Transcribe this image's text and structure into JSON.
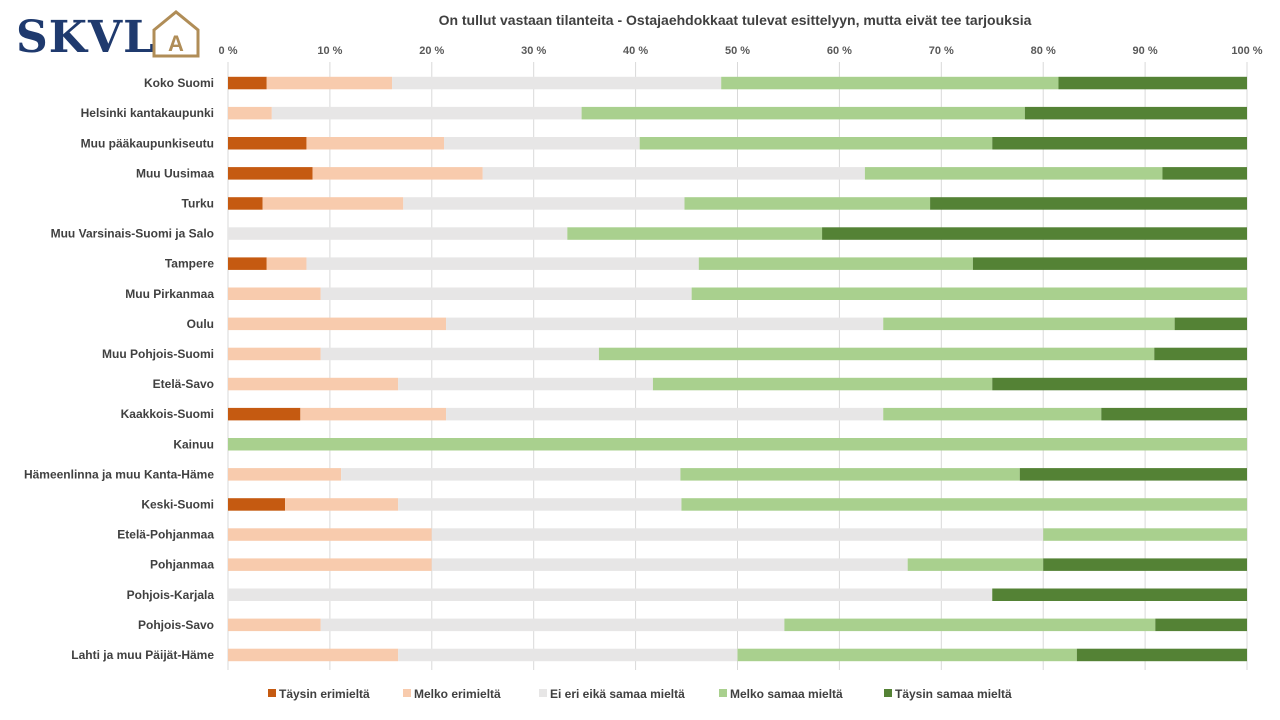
{
  "logo": {
    "text": "SKVL",
    "badge_letter": "A",
    "colors": {
      "text": "#1f3a6e",
      "badge": "#b08d57"
    }
  },
  "chart_data": {
    "type": "bar",
    "orientation": "horizontal-stacked-100",
    "title": "On tullut vastaan tilanteita - Ostajaehdokkaat tulevat esittelyyn, mutta eivät tee tarjouksia",
    "x_ticks": [
      "0 %",
      "10 %",
      "20 %",
      "30 %",
      "40 %",
      "50 %",
      "60 %",
      "70 %",
      "80 %",
      "90 %",
      "100 %"
    ],
    "xlim": [
      0,
      100
    ],
    "grid": true,
    "legend_position": "bottom",
    "categories": [
      "Koko Suomi",
      "Helsinki kantakaupunki",
      "Muu pääkaupunkiseutu",
      "Muu Uusimaa",
      "Turku",
      "Muu Varsinais-Suomi ja Salo",
      "Tampere",
      "Muu Pirkanmaa",
      "Oulu",
      "Muu Pohjois-Suomi",
      "Etelä-Savo",
      "Kaakkois-Suomi",
      "Kainuu",
      "Hämeenlinna ja muu Kanta-Häme",
      "Keski-Suomi",
      "Etelä-Pohjanmaa",
      "Pohjanmaa",
      "Pohjois-Karjala",
      "Pohjois-Savo",
      "Lahti ja muu Päijät-Häme"
    ],
    "series": [
      {
        "name": "Täysin erimieltä",
        "color": "#c55a11",
        "values": [
          3.8,
          0,
          7.7,
          8.3,
          3.4,
          0,
          3.8,
          0,
          0,
          0,
          0,
          7.1,
          0,
          0,
          5.6,
          0,
          0,
          0,
          0,
          0
        ]
      },
      {
        "name": "Melko erimieltä",
        "color": "#f8cbad",
        "values": [
          12.3,
          4.3,
          13.5,
          16.7,
          13.8,
          0,
          3.9,
          9.1,
          21.4,
          9.1,
          16.7,
          14.3,
          0,
          11.1,
          11.1,
          20,
          20,
          0,
          9.1,
          16.7
        ]
      },
      {
        "name": "Ei eri eikä samaa mieltä",
        "color": "#e7e6e6",
        "values": [
          32.3,
          30.4,
          19.2,
          37.5,
          27.6,
          33.3,
          38.5,
          36.4,
          42.9,
          27.3,
          25,
          42.9,
          0,
          33.3,
          27.8,
          60,
          46.7,
          75,
          45.5,
          33.3
        ]
      },
      {
        "name": "Melko samaa mieltä",
        "color": "#a9d08e",
        "values": [
          33.1,
          43.5,
          34.6,
          29.2,
          24.1,
          25,
          26.9,
          54.5,
          28.6,
          54.5,
          33.3,
          21.4,
          100,
          33.3,
          55.5,
          20,
          13.3,
          0,
          36.4,
          33.3
        ]
      },
      {
        "name": "Täysin samaa mieltä",
        "color": "#548235",
        "values": [
          18.5,
          21.8,
          25,
          8.3,
          31.1,
          41.7,
          26.9,
          0,
          7.1,
          9.1,
          25,
          14.3,
          0,
          22.3,
          0,
          0,
          20,
          25,
          9,
          16.7
        ]
      }
    ]
  }
}
